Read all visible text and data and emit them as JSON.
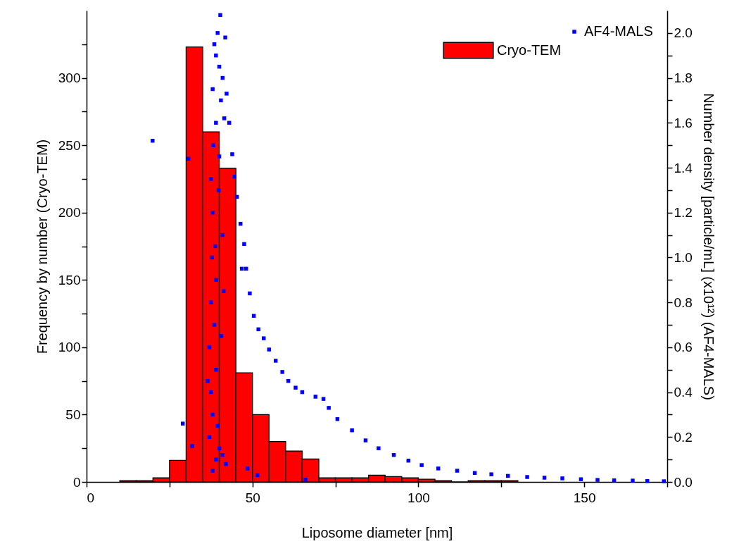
{
  "chart_data": {
    "type": "histogram",
    "xlabel": "Liposome diameter [nm]",
    "ylabel": "Frequency by number (Cryo-TEM)",
    "y2label": "Number density [particle/mL] (x10¹²) (AF4-MALS)",
    "xlim": [
      0,
      175
    ],
    "xticks": [
      0,
      {
        "value": 25,
        "label": null
      },
      50,
      {
        "value": 75,
        "label": null
      },
      100,
      {
        "value": 125,
        "label": null
      },
      150,
      {
        "value": 175,
        "label": null
      }
    ],
    "ylim": [
      0,
      350
    ],
    "yticks": [
      0,
      {
        "value": 25,
        "label": null
      },
      50,
      {
        "value": 75,
        "label": null
      },
      100,
      {
        "value": 125,
        "label": null
      },
      150,
      {
        "value": 175,
        "label": null
      },
      200,
      {
        "value": 225,
        "label": null
      },
      250,
      {
        "value": 275,
        "label": null
      },
      300,
      {
        "value": 325,
        "label": null
      }
    ],
    "y2lim": [
      0,
      2.1
    ],
    "y2ticks": [
      {
        "value": 0,
        "label": "0.0"
      },
      {
        "value": 0.1,
        "label": null
      },
      0.2,
      {
        "value": 0.3,
        "label": null
      },
      0.4,
      {
        "value": 0.5,
        "label": null
      },
      0.6,
      {
        "value": 0.7,
        "label": null
      },
      0.8,
      {
        "value": 0.9,
        "label": null
      },
      {
        "value": 1,
        "label": "1.0"
      },
      {
        "value": 1.1,
        "label": null
      },
      1.2,
      {
        "value": 1.3,
        "label": null
      },
      1.4,
      {
        "value": 1.5,
        "label": null
      },
      1.6,
      {
        "value": 1.7,
        "label": null
      },
      1.8,
      {
        "value": 1.9,
        "label": null
      },
      {
        "value": 2,
        "label": "2.0"
      }
    ],
    "bins": [
      10,
      15,
      20,
      25,
      30,
      35,
      40,
      45,
      50,
      55,
      60,
      65,
      70,
      75,
      80,
      85,
      90,
      95,
      100,
      105,
      110,
      115,
      120,
      125,
      130
    ],
    "legend": "top right",
    "marker": "square",
    "series": [
      {
        "name": "Cryo-TEM",
        "color": "#ff0000",
        "values": [
          1,
          1,
          3,
          16,
          323,
          260,
          233,
          81,
          50,
          30,
          23,
          17,
          3,
          3,
          3,
          5,
          4,
          3,
          2,
          1,
          0,
          1,
          1,
          1
        ]
      },
      {
        "name": "AF4-MALS",
        "type": "scatter",
        "axis": "y2",
        "color": "#0000ff",
        "x": [
          40.3,
          39.5,
          38.5,
          39,
          40,
          41,
          38,
          40.5,
          39,
          41.5,
          38.2,
          40,
          37.5,
          38,
          41,
          37.8,
          39,
          37.5,
          38.5,
          37,
          39,
          37.5,
          38,
          39.5,
          37,
          40,
          41,
          39,
          42,
          38,
          19.9,
          30.7,
          29,
          31.8,
          48.5,
          51.5,
          66,
          41.3,
          46.8,
          36.5,
          39.8,
          38.8,
          40.6,
          41.8,
          42.2,
          43,
          43.9,
          44.6,
          45.3,
          46.4,
          47.5,
          48.1,
          49.2,
          50.4,
          51.8,
          53.4,
          55,
          57,
          59,
          60.8,
          63,
          65,
          69,
          71.4,
          73,
          75.6,
          80,
          84.1,
          88,
          92.6,
          97,
          101,
          106,
          111.7,
          117,
          122,
          127,
          132.8,
          138,
          143.4,
          149,
          154,
          159,
          164.6,
          169,
          174
        ],
        "values": [
          2.08,
          2.0,
          1.95,
          1.9,
          1.85,
          1.8,
          1.75,
          1.7,
          1.6,
          1.62,
          1.5,
          1.45,
          1.35,
          1.2,
          1.1,
          1.0,
          0.9,
          0.8,
          0.7,
          0.6,
          0.5,
          0.4,
          0.3,
          0.25,
          0.2,
          0.15,
          0.12,
          0.1,
          0.08,
          0.05,
          1.52,
          1.44,
          0.26,
          0.16,
          0.06,
          0.03,
          0.01,
          0.85,
          0.95,
          0.45,
          1.3,
          1.05,
          0.65,
          1.98,
          1.73,
          1.6,
          1.46,
          1.36,
          1.27,
          1.15,
          1.06,
          0.95,
          0.84,
          0.74,
          0.68,
          0.64,
          0.59,
          0.54,
          0.49,
          0.45,
          0.42,
          0.4,
          0.38,
          0.37,
          0.33,
          0.28,
          0.23,
          0.185,
          0.15,
          0.12,
          0.095,
          0.075,
          0.06,
          0.05,
          0.04,
          0.034,
          0.027,
          0.022,
          0.019,
          0.016,
          0.012,
          0.009,
          0.007,
          0.006,
          0.004,
          0.003
        ]
      }
    ]
  }
}
